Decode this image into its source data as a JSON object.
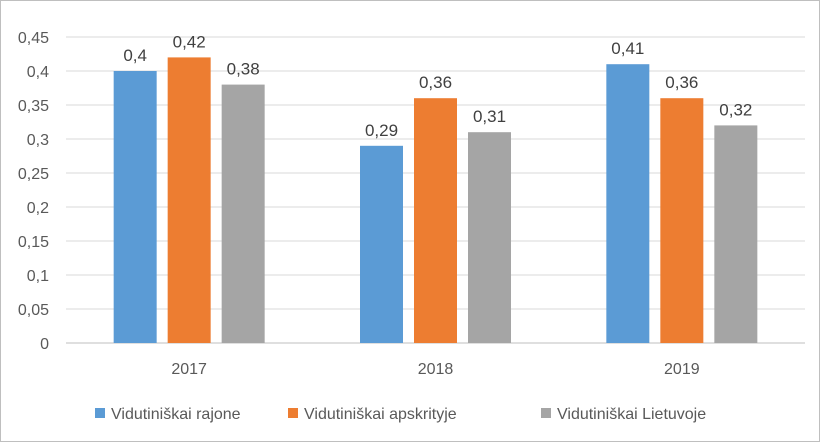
{
  "chart_data": {
    "type": "bar",
    "title": "",
    "xlabel": "",
    "ylabel": "",
    "categories": [
      "2017",
      "2018",
      "2019"
    ],
    "series": [
      {
        "name": "Vidutiniškai rajone",
        "color": "#5b9bd5",
        "values": [
          0.4,
          0.29,
          0.41
        ],
        "labels": [
          "0,4",
          "0,29",
          "0,41"
        ]
      },
      {
        "name": "Vidutiniškai apskrityje",
        "color": "#ed7d31",
        "values": [
          0.42,
          0.36,
          0.36
        ],
        "labels": [
          "0,42",
          "0,36",
          "0,36"
        ]
      },
      {
        "name": "Vidutiniškai Lietuvoje",
        "color": "#a5a5a5",
        "values": [
          0.38,
          0.31,
          0.32
        ],
        "labels": [
          "0,38",
          "0,31",
          "0,32"
        ]
      }
    ],
    "ylim": [
      0,
      0.45
    ],
    "yticks": [
      {
        "value": 0,
        "label": "0"
      },
      {
        "value": 0.05,
        "label": "0,05"
      },
      {
        "value": 0.1,
        "label": "0,1"
      },
      {
        "value": 0.15,
        "label": "0,15"
      },
      {
        "value": 0.2,
        "label": "0,2"
      },
      {
        "value": 0.25,
        "label": "0,25"
      },
      {
        "value": 0.3,
        "label": "0,3"
      },
      {
        "value": 0.35,
        "label": "0,35"
      },
      {
        "value": 0.4,
        "label": "0,4"
      },
      {
        "value": 0.45,
        "label": "0,45"
      }
    ],
    "grid": true,
    "legend_position": "bottom"
  }
}
